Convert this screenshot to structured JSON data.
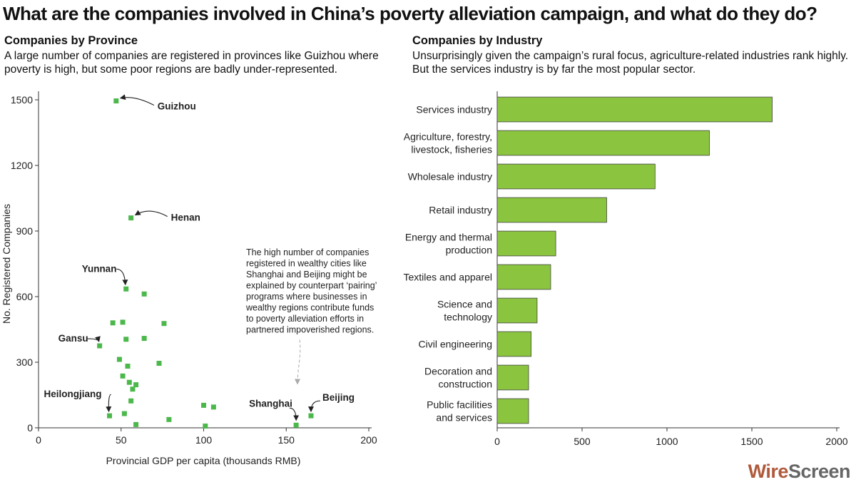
{
  "title": "What are the companies involved in China’s poverty alleviation campaign, and what do they do?",
  "left_panel": {
    "heading": "Companies by Province",
    "subtitle": "A large number of companies are registered in provinces like Guizhou where poverty is high, but some poor regions are badly under-represented."
  },
  "right_panel": {
    "heading": "Companies by Industry",
    "subtitle": "Unsurprisingly given the campaign’s rural focus, agriculture-related industries rank highly. But the services industry is by far the most popular sector."
  },
  "logo": {
    "part1": "Wire",
    "part2": "Screen"
  },
  "colors": {
    "marker": "#4cb84c",
    "bar": "#8bc53f",
    "bar_edge": "#444444",
    "axis": "#333333"
  },
  "chart_data": [
    {
      "type": "scatter",
      "xlabel": "Provincial GDP per capita (thousands RMB)",
      "ylabel": "No. Registered Companies",
      "xlim": [
        0,
        200
      ],
      "ylim": [
        0,
        1500
      ],
      "xticks": [
        0,
        50,
        100,
        150,
        200
      ],
      "yticks": [
        0,
        300,
        600,
        900,
        1200,
        1500
      ],
      "points": [
        {
          "x": 47,
          "y": 1495,
          "label": "Guizhou"
        },
        {
          "x": 56,
          "y": 960,
          "label": "Henan"
        },
        {
          "x": 53,
          "y": 635,
          "label": "Yunnan"
        },
        {
          "x": 64,
          "y": 612
        },
        {
          "x": 45,
          "y": 480
        },
        {
          "x": 51,
          "y": 483
        },
        {
          "x": 76,
          "y": 477
        },
        {
          "x": 53,
          "y": 405
        },
        {
          "x": 64,
          "y": 409
        },
        {
          "x": 37,
          "y": 375,
          "label": "Gansu"
        },
        {
          "x": 49,
          "y": 313
        },
        {
          "x": 73,
          "y": 295
        },
        {
          "x": 54,
          "y": 282
        },
        {
          "x": 51,
          "y": 237
        },
        {
          "x": 55,
          "y": 208
        },
        {
          "x": 59,
          "y": 197
        },
        {
          "x": 57,
          "y": 177
        },
        {
          "x": 56,
          "y": 123
        },
        {
          "x": 100,
          "y": 103
        },
        {
          "x": 106,
          "y": 95
        },
        {
          "x": 52,
          "y": 65
        },
        {
          "x": 43,
          "y": 55,
          "label": "Heilongjiang"
        },
        {
          "x": 165,
          "y": 55,
          "label": "Beijing"
        },
        {
          "x": 79,
          "y": 38
        },
        {
          "x": 59,
          "y": 15
        },
        {
          "x": 156,
          "y": 12,
          "label": "Shanghai"
        },
        {
          "x": 101,
          "y": 8
        }
      ],
      "annotation": "The high number of companies registered in wealthy cities like Shanghai and Beijing might be explained by counterpart ‘pairing’ programs where businesses in wealthy regions contribute funds to poverty alleviation efforts in partnered impoverished regions."
    },
    {
      "type": "bar",
      "orientation": "horizontal",
      "xlim": [
        0,
        2000
      ],
      "xticks": [
        0,
        500,
        1000,
        1500,
        2000
      ],
      "categories": [
        "Services industry",
        "Agriculture, forestry, livestock, fisheries",
        "Wholesale industry",
        "Retail industry",
        "Energy and thermal production",
        "Textiles and apparel",
        "Science and technology",
        "Civil engineering",
        "Decoration and construction",
        "Public facilities and services"
      ],
      "category_lines": [
        [
          "Services industry"
        ],
        [
          "Agriculture, forestry,",
          "livestock, fisheries"
        ],
        [
          "Wholesale industry"
        ],
        [
          "Retail industry"
        ],
        [
          "Energy and thermal",
          "production"
        ],
        [
          "Textiles and apparel"
        ],
        [
          "Science and",
          "technology"
        ],
        [
          "Civil engineering"
        ],
        [
          "Decoration and",
          "construction"
        ],
        [
          "Public facilities",
          "and services"
        ]
      ],
      "values": [
        1620,
        1250,
        930,
        645,
        345,
        315,
        235,
        200,
        185,
        185
      ]
    }
  ]
}
